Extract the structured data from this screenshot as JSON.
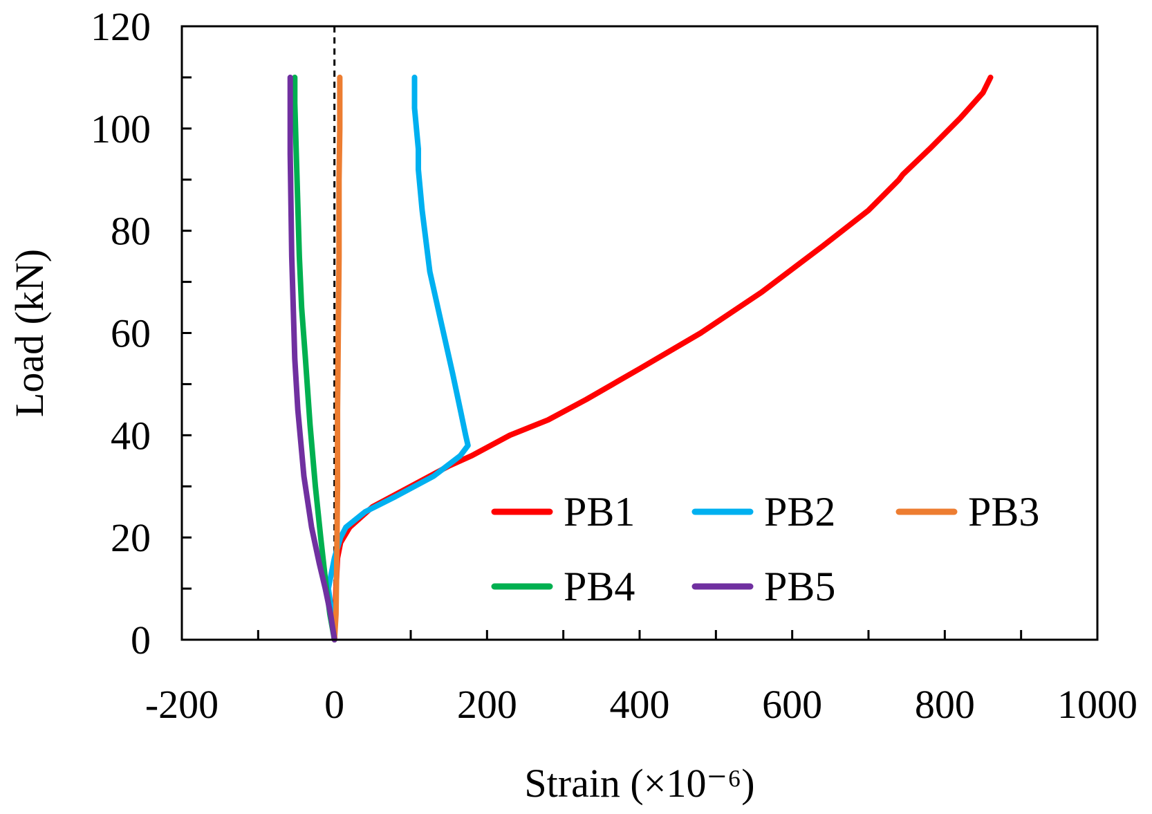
{
  "chart_data": {
    "type": "line",
    "title": "",
    "xlabel": "Strain (×10⁻⁶)",
    "ylabel": "Load (kN)",
    "xlim": [
      -200,
      1000
    ],
    "ylim": [
      0,
      120
    ],
    "x_ticks": [
      -200,
      0,
      200,
      400,
      600,
      800,
      1000
    ],
    "x_tick_labels": [
      "-200",
      "0",
      "200",
      "400",
      "600",
      "800",
      "1000"
    ],
    "y_ticks": [
      0,
      20,
      40,
      60,
      80,
      100,
      120
    ],
    "y_tick_labels": [
      "0",
      "20",
      "40",
      "60",
      "80",
      "100",
      "120"
    ],
    "x_minor_step": 100,
    "y_minor_step": 10,
    "reference_line_x": 0,
    "legend_position": "lower-right",
    "series": [
      {
        "name": "PB1",
        "color": "#ff0000",
        "points": [
          [
            0,
            0
          ],
          [
            2,
            10
          ],
          [
            4,
            16
          ],
          [
            8,
            19
          ],
          [
            20,
            22
          ],
          [
            50,
            26
          ],
          [
            100,
            30
          ],
          [
            150,
            34
          ],
          [
            180,
            36
          ],
          [
            230,
            40
          ],
          [
            280,
            43
          ],
          [
            330,
            47
          ],
          [
            400,
            53
          ],
          [
            480,
            60
          ],
          [
            560,
            68
          ],
          [
            640,
            77
          ],
          [
            700,
            84
          ],
          [
            740,
            90
          ],
          [
            745,
            91
          ],
          [
            780,
            96
          ],
          [
            820,
            102
          ],
          [
            850,
            107
          ],
          [
            860,
            110
          ]
        ]
      },
      {
        "name": "PB2",
        "color": "#00b0f0",
        "points": [
          [
            0,
            2
          ],
          [
            -4,
            6
          ],
          [
            -8,
            10
          ],
          [
            0,
            16
          ],
          [
            8,
            20
          ],
          [
            15,
            22
          ],
          [
            40,
            25
          ],
          [
            80,
            28
          ],
          [
            130,
            32
          ],
          [
            165,
            36
          ],
          [
            175,
            38
          ],
          [
            172,
            40
          ],
          [
            165,
            45
          ],
          [
            155,
            52
          ],
          [
            140,
            62
          ],
          [
            125,
            72
          ],
          [
            115,
            84
          ],
          [
            110,
            92
          ],
          [
            110,
            96
          ],
          [
            105,
            104
          ],
          [
            105,
            110
          ]
        ]
      },
      {
        "name": "PB3",
        "color": "#ed7d31",
        "points": [
          [
            0,
            0
          ],
          [
            2,
            5
          ],
          [
            3,
            15
          ],
          [
            4,
            30
          ],
          [
            4,
            45
          ],
          [
            5,
            60
          ],
          [
            6,
            75
          ],
          [
            6,
            90
          ],
          [
            7,
            100
          ],
          [
            7,
            110
          ]
        ]
      },
      {
        "name": "PB4",
        "color": "#00b050",
        "points": [
          [
            0,
            0
          ],
          [
            -6,
            5
          ],
          [
            -12,
            12
          ],
          [
            -18,
            20
          ],
          [
            -25,
            30
          ],
          [
            -32,
            42
          ],
          [
            -38,
            55
          ],
          [
            -43,
            65
          ],
          [
            -46,
            75
          ],
          [
            -48,
            85
          ],
          [
            -50,
            95
          ],
          [
            -52,
            105
          ],
          [
            -52,
            110
          ]
        ]
      },
      {
        "name": "PB5",
        "color": "#7030a0",
        "points": [
          [
            0,
            0
          ],
          [
            -5,
            5
          ],
          [
            -12,
            10
          ],
          [
            -20,
            15
          ],
          [
            -30,
            22
          ],
          [
            -40,
            32
          ],
          [
            -48,
            45
          ],
          [
            -52,
            55
          ],
          [
            -54,
            65
          ],
          [
            -56,
            75
          ],
          [
            -57,
            85
          ],
          [
            -58,
            95
          ],
          [
            -58,
            105
          ],
          [
            -58,
            110
          ]
        ]
      }
    ]
  }
}
